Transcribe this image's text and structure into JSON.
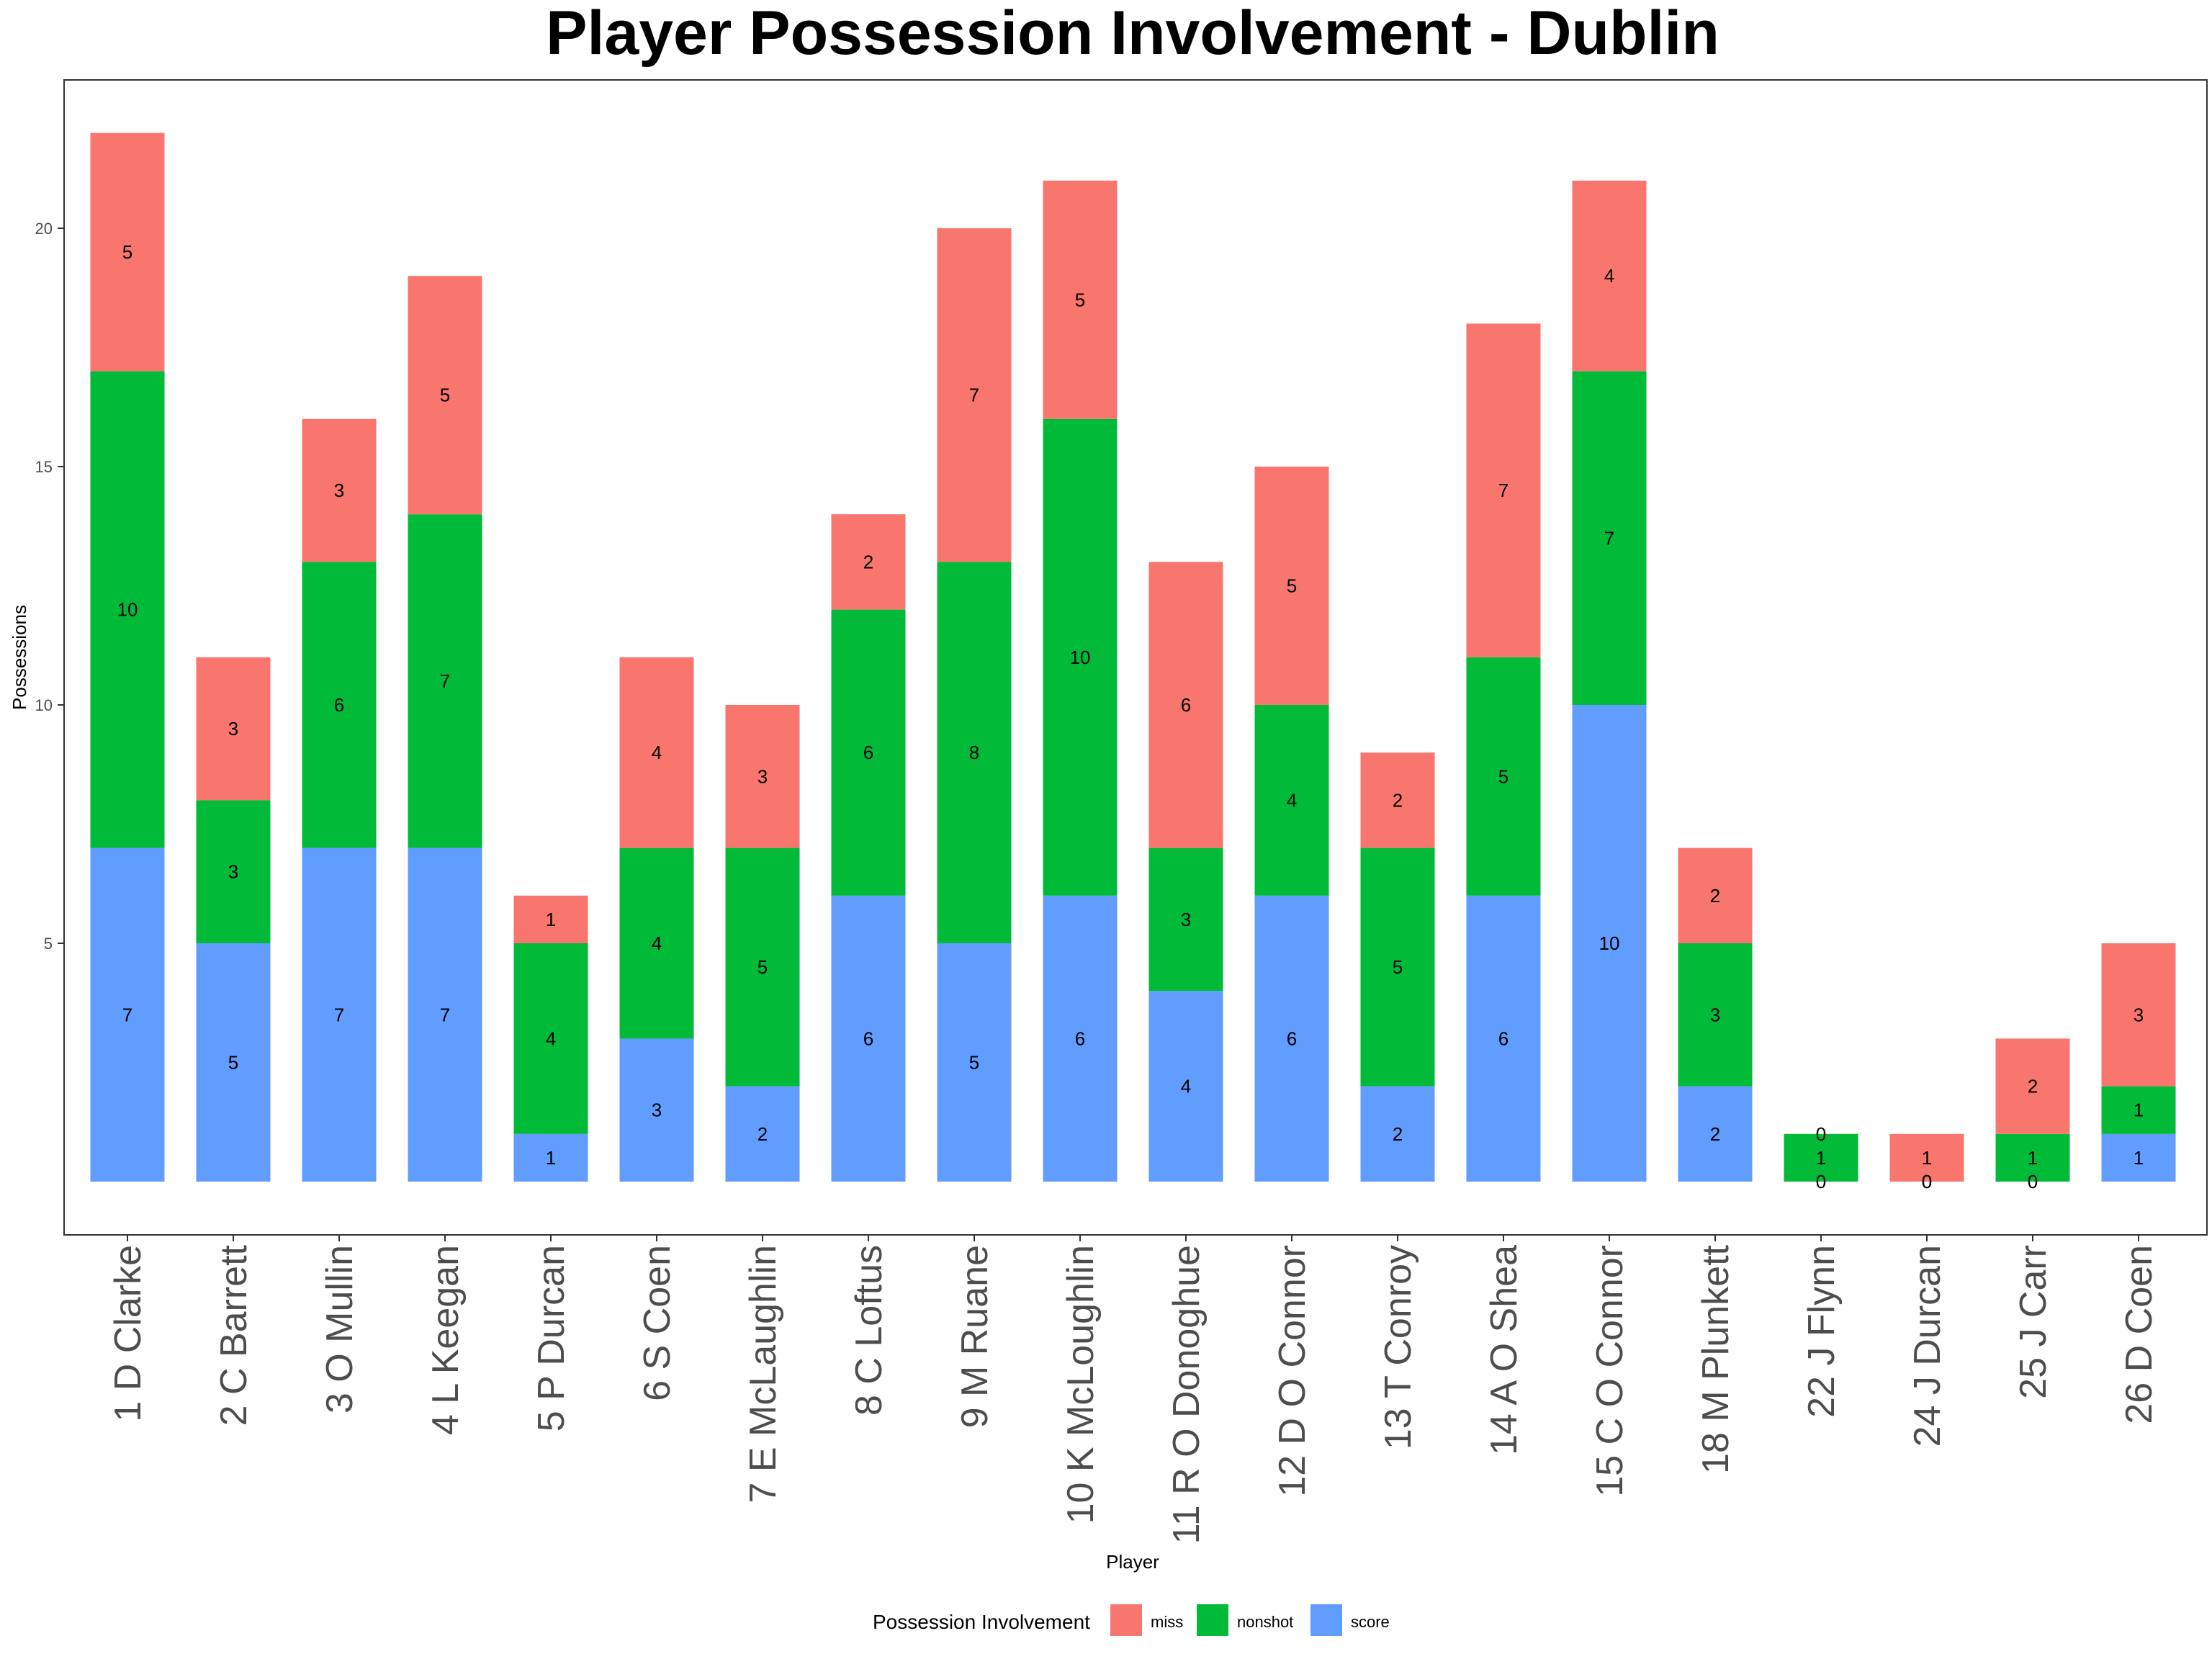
{
  "chart_data": {
    "type": "bar",
    "stacked": true,
    "title": "Player Possession Involvement - Dublin",
    "xlabel": "Player",
    "ylabel": "Possessions",
    "ylim": [
      0,
      22
    ],
    "yticks": [
      5,
      10,
      15,
      20
    ],
    "categories": [
      "1 D Clarke",
      "2 C Barrett",
      "3 O Mullin",
      "4 L Keegan",
      "5 P Durcan",
      "6 S Coen",
      "7 E McLaughlin",
      "8 C Loftus",
      "9 M Ruane",
      "10 K McLoughlin",
      "11 R O Donoghue",
      "12 D O Connor",
      "13 T Conroy",
      "14 A O Shea",
      "15 C O Connor",
      "18 M Plunkett",
      "22 J Flynn",
      "24 J Durcan",
      "25 J Carr",
      "26 D Coen"
    ],
    "series": [
      {
        "name": "score",
        "color": "#619CFF",
        "values": [
          7,
          5,
          7,
          7,
          1,
          3,
          2,
          6,
          5,
          6,
          4,
          6,
          2,
          6,
          10,
          2,
          0,
          0,
          0,
          1
        ]
      },
      {
        "name": "nonshot",
        "color": "#00BA38",
        "values": [
          10,
          3,
          6,
          7,
          4,
          4,
          5,
          6,
          8,
          10,
          3,
          4,
          5,
          5,
          7,
          3,
          1,
          0,
          1,
          1
        ]
      },
      {
        "name": "miss",
        "color": "#F8766D",
        "values": [
          5,
          3,
          3,
          5,
          1,
          4,
          3,
          2,
          7,
          5,
          6,
          5,
          2,
          7,
          4,
          2,
          0,
          1,
          2,
          3
        ]
      }
    ],
    "legend": {
      "title": "Possession Involvement",
      "position": "bottom",
      "order": [
        "miss",
        "nonshot",
        "score"
      ]
    },
    "grid": false
  }
}
